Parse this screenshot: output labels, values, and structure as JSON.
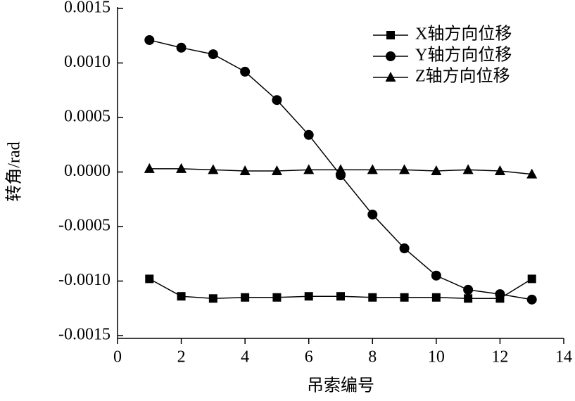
{
  "chart_data": {
    "type": "line",
    "x_label": "吊索编号",
    "y_label": "转角/rad",
    "x": [
      1,
      2,
      3,
      4,
      5,
      6,
      7,
      8,
      9,
      10,
      11,
      12,
      13
    ],
    "series": [
      {
        "name": "X轴方向位移",
        "color": "#000000",
        "marker": "square",
        "values": [
          -0.00098,
          -0.00114,
          -0.00116,
          -0.00115,
          -0.00115,
          -0.00114,
          -0.00114,
          -0.00115,
          -0.00115,
          -0.00115,
          -0.00116,
          -0.00116,
          -0.00098
        ]
      },
      {
        "name": "Y轴方向位移",
        "color": "#000000",
        "marker": "circle",
        "values": [
          0.00121,
          0.00114,
          0.00108,
          0.00092,
          0.00066,
          0.00034,
          -3e-05,
          -0.00039,
          -0.0007,
          -0.00095,
          -0.00108,
          -0.00112,
          -0.00117
        ]
      },
      {
        "name": "Z轴方向位移",
        "color": "#000000",
        "marker": "triangle",
        "values": [
          3e-05,
          3e-05,
          2e-05,
          1e-05,
          1e-05,
          2e-05,
          2e-05,
          2e-05,
          2e-05,
          1e-05,
          2e-05,
          1e-05,
          -2e-05
        ]
      }
    ],
    "xlim": [
      0,
      14
    ],
    "xticks": [
      0,
      2,
      4,
      6,
      8,
      10,
      12,
      14
    ],
    "ylim": [
      -0.0015,
      0.0015
    ],
    "yticks": [
      {
        "value": -0.0015,
        "label": "-0.0015"
      },
      {
        "value": -0.001,
        "label": "-0.0010"
      },
      {
        "value": -0.0005,
        "label": "-0.0005"
      },
      {
        "value": 0,
        "label": "0.0000"
      },
      {
        "value": 0.0005,
        "label": "0.0005"
      },
      {
        "value": 0.001,
        "label": "0.0010"
      },
      {
        "value": 0.0015,
        "label": "0.0015"
      }
    ],
    "legend": "top-right",
    "grid": false
  }
}
